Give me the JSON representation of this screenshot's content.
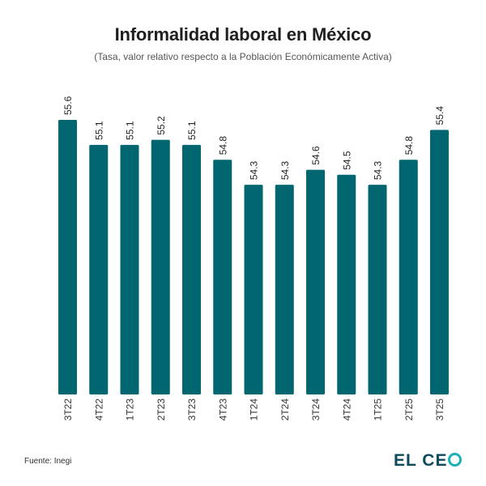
{
  "chart_data": {
    "type": "bar",
    "title": "Informalidad laboral en México",
    "subtitle": "(Tasa, valor relativo respecto a la Población Económicamente Activa)",
    "categories": [
      "3T22",
      "4T22",
      "1T23",
      "2T23",
      "3T23",
      "4T23",
      "1T24",
      "2T24",
      "3T24",
      "4T24",
      "1T25",
      "2T25",
      "3T25"
    ],
    "values": [
      55.6,
      55.1,
      55.1,
      55.2,
      55.1,
      54.8,
      54.3,
      54.3,
      54.6,
      54.5,
      54.3,
      54.8,
      55.4
    ],
    "xlabel": "",
    "ylabel": "",
    "ylim": [
      50.1,
      55.6
    ],
    "grid": false,
    "bar_color": "#026670"
  },
  "footer": {
    "source": "Fuente: Inegi",
    "logo_text": "EL CE",
    "logo_text_full": "EL CEO"
  },
  "colors": {
    "logo_dark": "#0e4a5c",
    "logo_accent": "#1ab0b6"
  }
}
